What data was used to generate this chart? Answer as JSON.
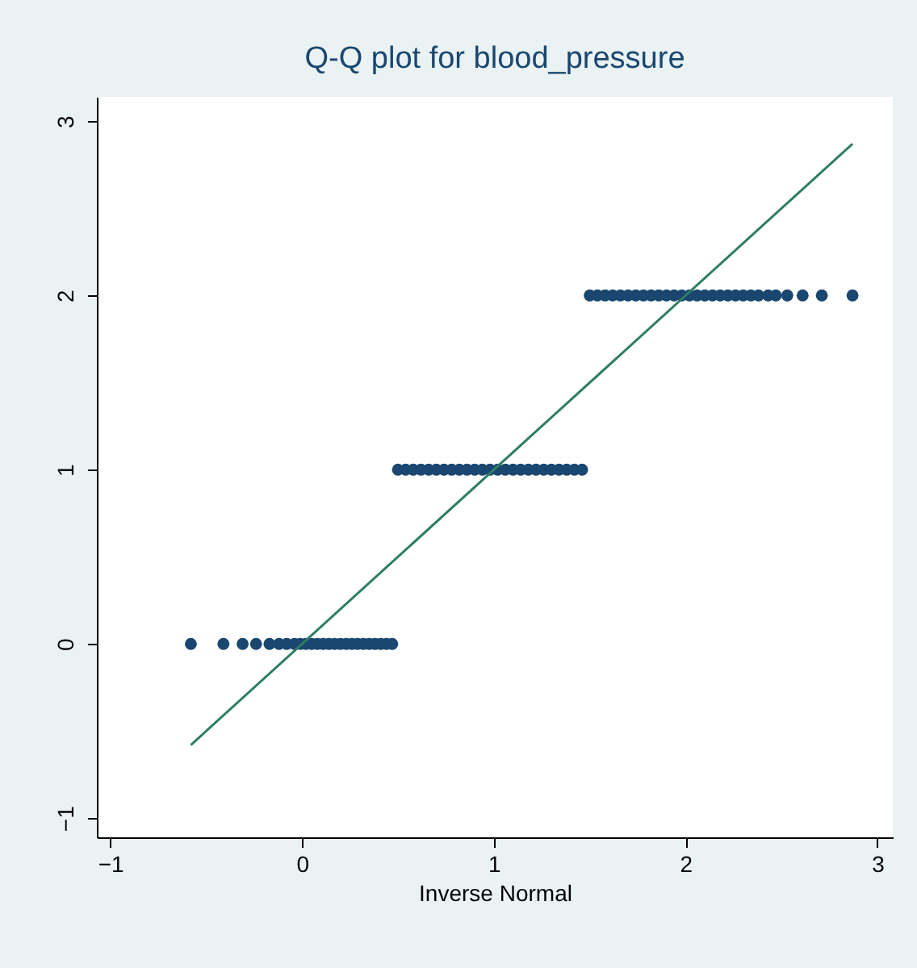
{
  "chart_data": {
    "type": "scatter",
    "title": "Q-Q plot for blood_pressure",
    "xlabel": "Inverse Normal",
    "xlim": [
      -1.07,
      3.08
    ],
    "ylim": [
      -1.11,
      3.14
    ],
    "xticks": [
      -1,
      0,
      1,
      2,
      3
    ],
    "yticks": [
      -1,
      0,
      1,
      2,
      3
    ],
    "grid": false,
    "series": [
      {
        "marker": "circle",
        "color": "#1a476f",
        "x": [
          -0.58,
          -0.41,
          -0.31,
          -0.24,
          -0.17,
          -0.12,
          -0.08,
          -0.04,
          -0.01,
          0.02,
          0.05,
          0.08,
          0.11,
          0.14,
          0.17,
          0.2,
          0.23,
          0.26,
          0.29,
          0.32,
          0.35,
          0.38,
          0.41,
          0.44,
          0.47,
          0.5,
          0.54,
          0.58,
          0.62,
          0.66,
          0.7,
          0.74,
          0.78,
          0.82,
          0.86,
          0.9,
          0.94,
          0.98,
          1.02,
          1.06,
          1.1,
          1.14,
          1.18,
          1.22,
          1.26,
          1.3,
          1.34,
          1.38,
          1.42,
          1.46,
          1.5,
          1.54,
          1.58,
          1.62,
          1.66,
          1.7,
          1.74,
          1.78,
          1.82,
          1.86,
          1.9,
          1.94,
          1.98,
          2.02,
          2.06,
          2.1,
          2.14,
          2.18,
          2.22,
          2.26,
          2.3,
          2.34,
          2.38,
          2.43,
          2.47,
          2.53,
          2.61,
          2.71,
          2.87
        ],
        "values": [
          0,
          0,
          0,
          0,
          0,
          0,
          0,
          0,
          0,
          0,
          0,
          0,
          0,
          0,
          0,
          0,
          0,
          0,
          0,
          0,
          0,
          0,
          0,
          0,
          0,
          1,
          1,
          1,
          1,
          1,
          1,
          1,
          1,
          1,
          1,
          1,
          1,
          1,
          1,
          1,
          1,
          1,
          1,
          1,
          1,
          1,
          1,
          1,
          1,
          1,
          2,
          2,
          2,
          2,
          2,
          2,
          2,
          2,
          2,
          2,
          2,
          2,
          2,
          2,
          2,
          2,
          2,
          2,
          2,
          2,
          2,
          2,
          2,
          2,
          2,
          2,
          2,
          2,
          2
        ]
      },
      {
        "type": "line",
        "marker": "none",
        "color": "#2e7d64",
        "line_style": "solid",
        "x": [
          -0.58,
          2.87
        ],
        "values": [
          -0.58,
          2.87
        ]
      }
    ]
  }
}
